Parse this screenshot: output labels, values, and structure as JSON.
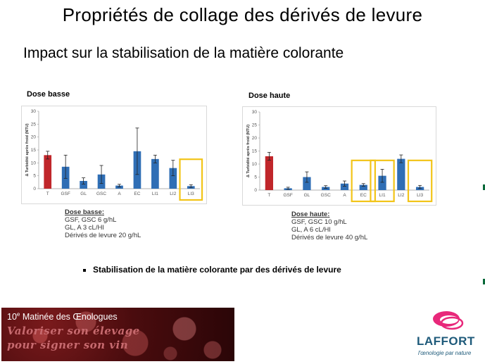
{
  "title": "Propriétés de collage des dérivés de levure",
  "subtitle": "Impact sur la stabilisation de la matière colorante",
  "colors": {
    "control_bar": "#c0262a",
    "treatment_bar": "#2f6eb5",
    "highlight_box": "#f2c418"
  },
  "chart_data": [
    {
      "type": "bar",
      "title": "Dose basse",
      "ylabel": "Δ Turbidité après froid (NTU)",
      "ylim": [
        0,
        30
      ],
      "yticks": [
        "0",
        "5",
        "10",
        "15",
        "20",
        "25",
        "30"
      ],
      "categories": [
        "T",
        "GSF",
        "GL",
        "GSC",
        "A",
        "EC",
        "LI1",
        "LI2",
        "LI3"
      ],
      "values": [
        13,
        8.5,
        3,
        5.5,
        1.2,
        14.5,
        11.5,
        8,
        1
      ],
      "errors": [
        1.5,
        4.5,
        1.2,
        3.5,
        0.5,
        9,
        1.5,
        3,
        0.5
      ],
      "highlighted": [
        "LI3"
      ]
    },
    {
      "type": "bar",
      "title": "Dose haute",
      "ylabel": "Δ Turbidité après froid (NTU)",
      "ylim": [
        0,
        30
      ],
      "yticks": [
        "0",
        "5",
        "10",
        "15",
        "20",
        "25",
        "30"
      ],
      "categories": [
        "T",
        "GSF",
        "GL",
        "GSC",
        "A",
        "EC",
        "LI1",
        "LI2",
        "LI3"
      ],
      "values": [
        13,
        0.7,
        5,
        1.2,
        2.5,
        2,
        5.5,
        12,
        1.2
      ],
      "errors": [
        1.5,
        0.4,
        2,
        0.5,
        1,
        0.5,
        2.5,
        1.5,
        0.6
      ],
      "highlighted": [
        "EC",
        "LI1",
        "LI3"
      ]
    }
  ],
  "dose_basse": {
    "head": "Dose basse",
    "lines": [
      "GSF, GSC 6 g/hL",
      "GL, A 3 cL/Hl",
      "Dérivés de levure 20 g/hL"
    ]
  },
  "dose_haute": {
    "head": "Dose haute",
    "lines": [
      "GSF, GSC 10 g/hL",
      "GL, A 6 cL/Hl",
      "Dérivés de levure 40 g/hL"
    ]
  },
  "bullet": "Stabilisation de la matière colorante par des dérivés de levure",
  "banner": {
    "number": "10",
    "number_sup": "e",
    "event": " Matinée des Œnologues",
    "slogan_line1": "Valoriser son élevage",
    "slogan_line2": "pour signer son vin"
  },
  "logo": {
    "name": "LAFFORT",
    "tagline": "l'œnologie par nature"
  }
}
